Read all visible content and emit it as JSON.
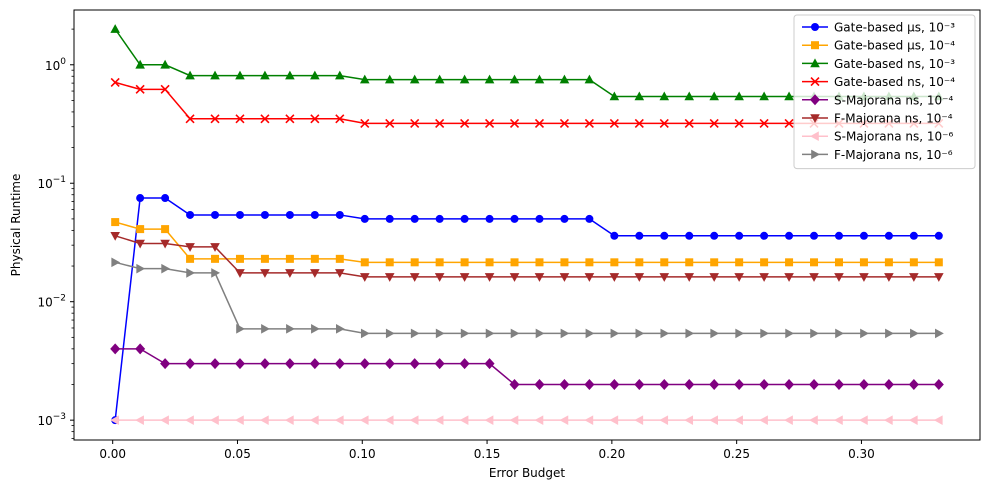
{
  "chart_data": {
    "type": "line",
    "xlabel": "Error Budget",
    "ylabel": "Physical Runtime",
    "yscale": "log",
    "xlim": [
      -0.0155,
      0.3475
    ],
    "ylim": [
      0.00068,
      2.9
    ],
    "xticks": [
      0.0,
      0.05,
      0.1,
      0.15,
      0.2,
      0.25,
      0.3
    ],
    "xtick_labels": [
      "0.00",
      "0.05",
      "0.10",
      "0.15",
      "0.20",
      "0.25",
      "0.30"
    ],
    "yticks": [
      0.001,
      0.01,
      0.1,
      1
    ],
    "legend_position": "top-right",
    "x": [
      0.001,
      0.011,
      0.021,
      0.031,
      0.041,
      0.051,
      0.061,
      0.071,
      0.081,
      0.091,
      0.101,
      0.111,
      0.121,
      0.131,
      0.141,
      0.151,
      0.161,
      0.171,
      0.181,
      0.191,
      0.201,
      0.211,
      0.221,
      0.231,
      0.241,
      0.251,
      0.261,
      0.271,
      0.281,
      0.291,
      0.301,
      0.311,
      0.321,
      0.331
    ],
    "series": [
      {
        "name": "Gate-based µs, 10⁻³",
        "color": "#0000ff",
        "marker": "circle",
        "values": [
          0.001,
          0.075,
          0.075,
          0.054,
          0.054,
          0.054,
          0.054,
          0.054,
          0.054,
          0.054,
          0.05,
          0.05,
          0.05,
          0.05,
          0.05,
          0.05,
          0.05,
          0.05,
          0.05,
          0.05,
          0.036,
          0.036,
          0.036,
          0.036,
          0.036,
          0.036,
          0.036,
          0.036,
          0.036,
          0.036,
          0.036,
          0.036,
          0.036,
          0.036
        ]
      },
      {
        "name": "Gate-based µs, 10⁻⁴",
        "color": "#ffa500",
        "marker": "square",
        "values": [
          0.047,
          0.041,
          0.041,
          0.023,
          0.023,
          0.023,
          0.023,
          0.023,
          0.023,
          0.023,
          0.0215,
          0.0215,
          0.0215,
          0.0215,
          0.0215,
          0.0215,
          0.0215,
          0.0215,
          0.0215,
          0.0215,
          0.0215,
          0.0215,
          0.0215,
          0.0215,
          0.0215,
          0.0215,
          0.0215,
          0.0215,
          0.0215,
          0.0215,
          0.0215,
          0.0215,
          0.0215,
          0.0215
        ]
      },
      {
        "name": "Gate-based ns, 10⁻³",
        "color": "#008000",
        "marker": "triangle-up",
        "values": [
          2.0,
          1.0,
          1.0,
          0.81,
          0.81,
          0.81,
          0.81,
          0.81,
          0.81,
          0.81,
          0.75,
          0.75,
          0.75,
          0.75,
          0.75,
          0.75,
          0.75,
          0.75,
          0.75,
          0.75,
          0.54,
          0.54,
          0.54,
          0.54,
          0.54,
          0.54,
          0.54,
          0.54,
          0.54,
          0.54,
          0.54,
          0.54,
          0.54,
          0.54
        ]
      },
      {
        "name": "Gate-based ns, 10⁻⁴",
        "color": "#ff0000",
        "marker": "x",
        "values": [
          0.71,
          0.62,
          0.62,
          0.35,
          0.35,
          0.35,
          0.35,
          0.35,
          0.35,
          0.35,
          0.32,
          0.32,
          0.32,
          0.32,
          0.32,
          0.32,
          0.32,
          0.32,
          0.32,
          0.32,
          0.32,
          0.32,
          0.32,
          0.32,
          0.32,
          0.32,
          0.32,
          0.32,
          0.32,
          0.32,
          0.32,
          0.32,
          0.32,
          0.32
        ]
      },
      {
        "name": "S-Majorana ns, 10⁻⁴",
        "color": "#800080",
        "marker": "diamond",
        "values": [
          0.004,
          0.004,
          0.003,
          0.003,
          0.003,
          0.003,
          0.003,
          0.003,
          0.003,
          0.003,
          0.003,
          0.003,
          0.003,
          0.003,
          0.003,
          0.003,
          0.002,
          0.002,
          0.002,
          0.002,
          0.002,
          0.002,
          0.002,
          0.002,
          0.002,
          0.002,
          0.002,
          0.002,
          0.002,
          0.002,
          0.002,
          0.002,
          0.002,
          0.002
        ]
      },
      {
        "name": "F-Majorana ns, 10⁻⁴",
        "color": "#a52a2a",
        "marker": "triangle-down",
        "values": [
          0.036,
          0.031,
          0.031,
          0.029,
          0.029,
          0.0175,
          0.0175,
          0.0175,
          0.0175,
          0.0175,
          0.0162,
          0.0162,
          0.0162,
          0.0162,
          0.0162,
          0.0162,
          0.0162,
          0.0162,
          0.0162,
          0.0162,
          0.0162,
          0.0162,
          0.0162,
          0.0162,
          0.0162,
          0.0162,
          0.0162,
          0.0162,
          0.0162,
          0.0162,
          0.0162,
          0.0162,
          0.0162,
          0.0162
        ]
      },
      {
        "name": "S-Majorana ns, 10⁻⁶",
        "color": "#ffc0cb",
        "marker": "triangle-left",
        "values": [
          0.001,
          0.001,
          0.001,
          0.001,
          0.001,
          0.001,
          0.001,
          0.001,
          0.001,
          0.001,
          0.001,
          0.001,
          0.001,
          0.001,
          0.001,
          0.001,
          0.001,
          0.001,
          0.001,
          0.001,
          0.001,
          0.001,
          0.001,
          0.001,
          0.001,
          0.001,
          0.001,
          0.001,
          0.001,
          0.001,
          0.001,
          0.001,
          0.001,
          0.001
        ]
      },
      {
        "name": "F-Majorana ns, 10⁻⁶",
        "color": "#808080",
        "marker": "triangle-right",
        "values": [
          0.0215,
          0.019,
          0.019,
          0.0175,
          0.0175,
          0.0059,
          0.0059,
          0.0059,
          0.0059,
          0.0059,
          0.0054,
          0.0054,
          0.0054,
          0.0054,
          0.0054,
          0.0054,
          0.0054,
          0.0054,
          0.0054,
          0.0054,
          0.0054,
          0.0054,
          0.0054,
          0.0054,
          0.0054,
          0.0054,
          0.0054,
          0.0054,
          0.0054,
          0.0054,
          0.0054,
          0.0054,
          0.0054,
          0.0054
        ]
      }
    ]
  }
}
